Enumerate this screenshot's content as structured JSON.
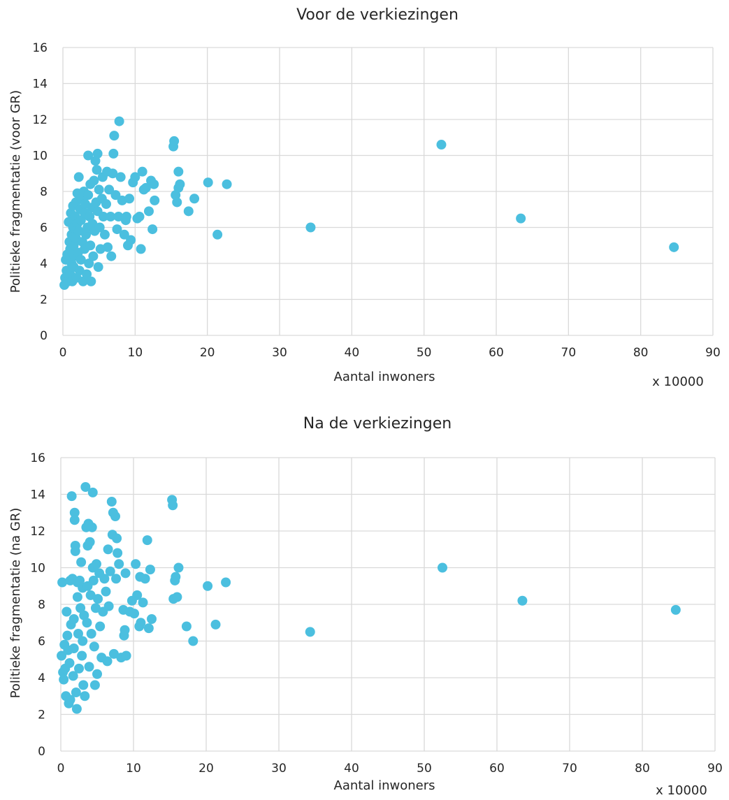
{
  "chart_data": [
    {
      "type": "scatter",
      "title": "Voor de verkiezingen",
      "xlabel": "Aantal inwoners",
      "x_multiplier_label": "x 10000",
      "ylabel": "Politieke fragmentatie (voor GR)",
      "xlim": [
        0,
        90
      ],
      "ylim": [
        0,
        16
      ],
      "x_ticks": [
        0,
        10,
        20,
        30,
        40,
        50,
        60,
        70,
        80,
        90
      ],
      "y_ticks": [
        0,
        2,
        4,
        6,
        8,
        10,
        12,
        14,
        16
      ],
      "grid": true,
      "marker_color": "#4bbfdf",
      "series": [
        {
          "points": [
            [
              0.2,
              2.8
            ],
            [
              0.3,
              3.2
            ],
            [
              0.4,
              4.2
            ],
            [
              0.5,
              3.6
            ],
            [
              0.6,
              4.5
            ],
            [
              0.7,
              3.0
            ],
            [
              0.8,
              6.3
            ],
            [
              0.9,
              5.2
            ],
            [
              1.0,
              4.8
            ],
            [
              1.0,
              3.4
            ],
            [
              1.1,
              6.8
            ],
            [
              1.2,
              5.6
            ],
            [
              1.2,
              4.0
            ],
            [
              1.3,
              3.0
            ],
            [
              1.4,
              7.2
            ],
            [
              1.4,
              6.0
            ],
            [
              1.5,
              5.0
            ],
            [
              1.5,
              3.8
            ],
            [
              1.6,
              4.4
            ],
            [
              1.7,
              6.6
            ],
            [
              1.8,
              7.4
            ],
            [
              1.8,
              5.4
            ],
            [
              1.9,
              3.2
            ],
            [
              2.0,
              7.9
            ],
            [
              2.0,
              6.2
            ],
            [
              2.1,
              4.6
            ],
            [
              2.2,
              8.8
            ],
            [
              2.2,
              5.8
            ],
            [
              2.3,
              3.6
            ],
            [
              2.4,
              7.0
            ],
            [
              2.5,
              6.4
            ],
            [
              2.5,
              4.2
            ],
            [
              2.6,
              7.6
            ],
            [
              2.7,
              5.2
            ],
            [
              2.8,
              3.0
            ],
            [
              2.9,
              8.0
            ],
            [
              3.0,
              6.8
            ],
            [
              3.0,
              4.8
            ],
            [
              3.1,
              7.3
            ],
            [
              3.2,
              5.6
            ],
            [
              3.3,
              3.4
            ],
            [
              3.4,
              6.0
            ],
            [
              3.5,
              10.0
            ],
            [
              3.5,
              7.8
            ],
            [
              3.6,
              4.0
            ],
            [
              3.7,
              6.6
            ],
            [
              3.8,
              8.4
            ],
            [
              3.8,
              5.0
            ],
            [
              3.9,
              3.0
            ],
            [
              4.0,
              7.1
            ],
            [
              4.1,
              6.2
            ],
            [
              4.2,
              4.4
            ],
            [
              4.3,
              8.6
            ],
            [
              4.4,
              5.8
            ],
            [
              4.5,
              9.7
            ],
            [
              4.6,
              7.4
            ],
            [
              4.7,
              9.2
            ],
            [
              4.8,
              10.1
            ],
            [
              4.8,
              6.9
            ],
            [
              4.9,
              3.8
            ],
            [
              5.0,
              8.1
            ],
            [
              5.1,
              6.0
            ],
            [
              5.2,
              4.8
            ],
            [
              5.4,
              7.6
            ],
            [
              5.5,
              8.8
            ],
            [
              5.6,
              6.6
            ],
            [
              5.8,
              5.6
            ],
            [
              6.0,
              7.3
            ],
            [
              6.1,
              9.1
            ],
            [
              6.2,
              4.9
            ],
            [
              6.4,
              8.1
            ],
            [
              6.6,
              6.6
            ],
            [
              6.7,
              4.4
            ],
            [
              6.9,
              9.0
            ],
            [
              7.0,
              10.1
            ],
            [
              7.1,
              11.1
            ],
            [
              7.3,
              7.8
            ],
            [
              7.5,
              5.9
            ],
            [
              7.7,
              6.6
            ],
            [
              7.8,
              11.9
            ],
            [
              8.0,
              8.8
            ],
            [
              8.2,
              7.5
            ],
            [
              8.5,
              5.6
            ],
            [
              8.7,
              6.4
            ],
            [
              8.8,
              6.6
            ],
            [
              9.0,
              5.0
            ],
            [
              9.2,
              7.6
            ],
            [
              9.4,
              5.3
            ],
            [
              9.7,
              8.5
            ],
            [
              10.0,
              8.8
            ],
            [
              10.3,
              6.5
            ],
            [
              10.6,
              6.6
            ],
            [
              10.8,
              4.8
            ],
            [
              11.0,
              9.1
            ],
            [
              11.2,
              8.1
            ],
            [
              11.5,
              8.2
            ],
            [
              11.9,
              6.9
            ],
            [
              12.2,
              8.6
            ],
            [
              12.4,
              5.9
            ],
            [
              12.6,
              8.4
            ],
            [
              12.7,
              7.5
            ],
            [
              15.3,
              10.5
            ],
            [
              15.4,
              10.8
            ],
            [
              15.6,
              7.8
            ],
            [
              15.8,
              7.4
            ],
            [
              16.0,
              9.1
            ],
            [
              16.0,
              8.2
            ],
            [
              16.2,
              8.4
            ],
            [
              17.4,
              6.9
            ],
            [
              18.2,
              7.6
            ],
            [
              20.1,
              8.5
            ],
            [
              21.4,
              5.6
            ],
            [
              22.7,
              8.4
            ],
            [
              34.3,
              6.0
            ],
            [
              52.4,
              10.6
            ],
            [
              63.4,
              6.5
            ],
            [
              84.6,
              4.9
            ]
          ]
        }
      ]
    },
    {
      "type": "scatter",
      "title": "Na de verkiezingen",
      "xlabel": "Aantal inwoners",
      "x_multiplier_label": "x 10000",
      "ylabel": "Politieke fragmentatie (na GR)",
      "xlim": [
        0,
        90
      ],
      "ylim": [
        0,
        16
      ],
      "x_ticks": [
        0,
        10,
        20,
        30,
        40,
        50,
        60,
        70,
        80,
        90
      ],
      "y_ticks": [
        0,
        2,
        4,
        6,
        8,
        10,
        12,
        14,
        16
      ],
      "grid": true,
      "marker_color": "#4bbfdf",
      "series": [
        {
          "points": [
            [
              0.1,
              5.2
            ],
            [
              0.2,
              9.2
            ],
            [
              0.3,
              4.3
            ],
            [
              0.4,
              3.9
            ],
            [
              0.5,
              5.8
            ],
            [
              0.6,
              4.5
            ],
            [
              0.7,
              3.0
            ],
            [
              0.8,
              7.6
            ],
            [
              0.9,
              6.3
            ],
            [
              1.0,
              5.5
            ],
            [
              1.1,
              2.6
            ],
            [
              1.2,
              4.8
            ],
            [
              1.3,
              2.8
            ],
            [
              1.3,
              9.3
            ],
            [
              1.4,
              6.9
            ],
            [
              1.5,
              13.9
            ],
            [
              1.6,
              9.4
            ],
            [
              1.7,
              4.1
            ],
            [
              1.8,
              7.2
            ],
            [
              1.8,
              5.6
            ],
            [
              1.9,
              13.0
            ],
            [
              1.9,
              12.6
            ],
            [
              2.0,
              11.2
            ],
            [
              2.0,
              10.9
            ],
            [
              2.1,
              3.2
            ],
            [
              2.2,
              2.3
            ],
            [
              2.3,
              8.4
            ],
            [
              2.3,
              9.2
            ],
            [
              2.4,
              6.4
            ],
            [
              2.5,
              4.5
            ],
            [
              2.6,
              9.3
            ],
            [
              2.7,
              7.8
            ],
            [
              2.8,
              10.3
            ],
            [
              2.9,
              5.2
            ],
            [
              3.0,
              8.9
            ],
            [
              3.0,
              6.0
            ],
            [
              3.1,
              3.6
            ],
            [
              3.2,
              7.4
            ],
            [
              3.3,
              3.0
            ],
            [
              3.4,
              14.4
            ],
            [
              3.5,
              12.2
            ],
            [
              3.6,
              7.0
            ],
            [
              3.7,
              9.0
            ],
            [
              3.7,
              11.2
            ],
            [
              3.8,
              12.4
            ],
            [
              3.9,
              4.6
            ],
            [
              4.0,
              11.4
            ],
            [
              4.1,
              8.5
            ],
            [
              4.2,
              6.4
            ],
            [
              4.3,
              12.2
            ],
            [
              4.4,
              14.1
            ],
            [
              4.4,
              10.0
            ],
            [
              4.5,
              9.3
            ],
            [
              4.6,
              5.7
            ],
            [
              4.7,
              3.6
            ],
            [
              4.8,
              7.8
            ],
            [
              4.9,
              10.2
            ],
            [
              5.0,
              4.2
            ],
            [
              5.1,
              8.3
            ],
            [
              5.3,
              9.7
            ],
            [
              5.4,
              6.8
            ],
            [
              5.6,
              5.1
            ],
            [
              5.8,
              7.6
            ],
            [
              6.0,
              9.4
            ],
            [
              6.2,
              8.7
            ],
            [
              6.4,
              4.9
            ],
            [
              6.5,
              11.0
            ],
            [
              6.6,
              7.9
            ],
            [
              6.8,
              9.8
            ],
            [
              7.0,
              13.6
            ],
            [
              7.1,
              11.8
            ],
            [
              7.2,
              13.0
            ],
            [
              7.3,
              5.3
            ],
            [
              7.5,
              12.8
            ],
            [
              7.6,
              9.4
            ],
            [
              7.7,
              11.6
            ],
            [
              7.8,
              10.8
            ],
            [
              8.0,
              10.2
            ],
            [
              8.3,
              5.1
            ],
            [
              8.6,
              7.7
            ],
            [
              8.7,
              6.3
            ],
            [
              8.8,
              6.6
            ],
            [
              8.9,
              9.7
            ],
            [
              9.0,
              5.2
            ],
            [
              9.5,
              7.6
            ],
            [
              9.8,
              8.2
            ],
            [
              10.1,
              7.5
            ],
            [
              10.3,
              10.2
            ],
            [
              10.5,
              8.5
            ],
            [
              10.8,
              6.8
            ],
            [
              10.9,
              9.5
            ],
            [
              11.0,
              7.0
            ],
            [
              11.3,
              8.1
            ],
            [
              11.6,
              9.4
            ],
            [
              11.9,
              11.5
            ],
            [
              12.1,
              6.7
            ],
            [
              12.3,
              9.9
            ],
            [
              12.5,
              7.2
            ],
            [
              15.3,
              13.7
            ],
            [
              15.4,
              13.4
            ],
            [
              15.5,
              8.3
            ],
            [
              15.7,
              9.3
            ],
            [
              15.8,
              9.5
            ],
            [
              16.0,
              8.4
            ],
            [
              16.2,
              10.0
            ],
            [
              17.3,
              6.8
            ],
            [
              18.2,
              6.0
            ],
            [
              20.2,
              9.0
            ],
            [
              21.3,
              6.9
            ],
            [
              22.7,
              9.2
            ],
            [
              34.3,
              6.5
            ],
            [
              52.5,
              10.0
            ],
            [
              63.5,
              8.2
            ],
            [
              84.6,
              7.7
            ]
          ]
        }
      ]
    }
  ]
}
